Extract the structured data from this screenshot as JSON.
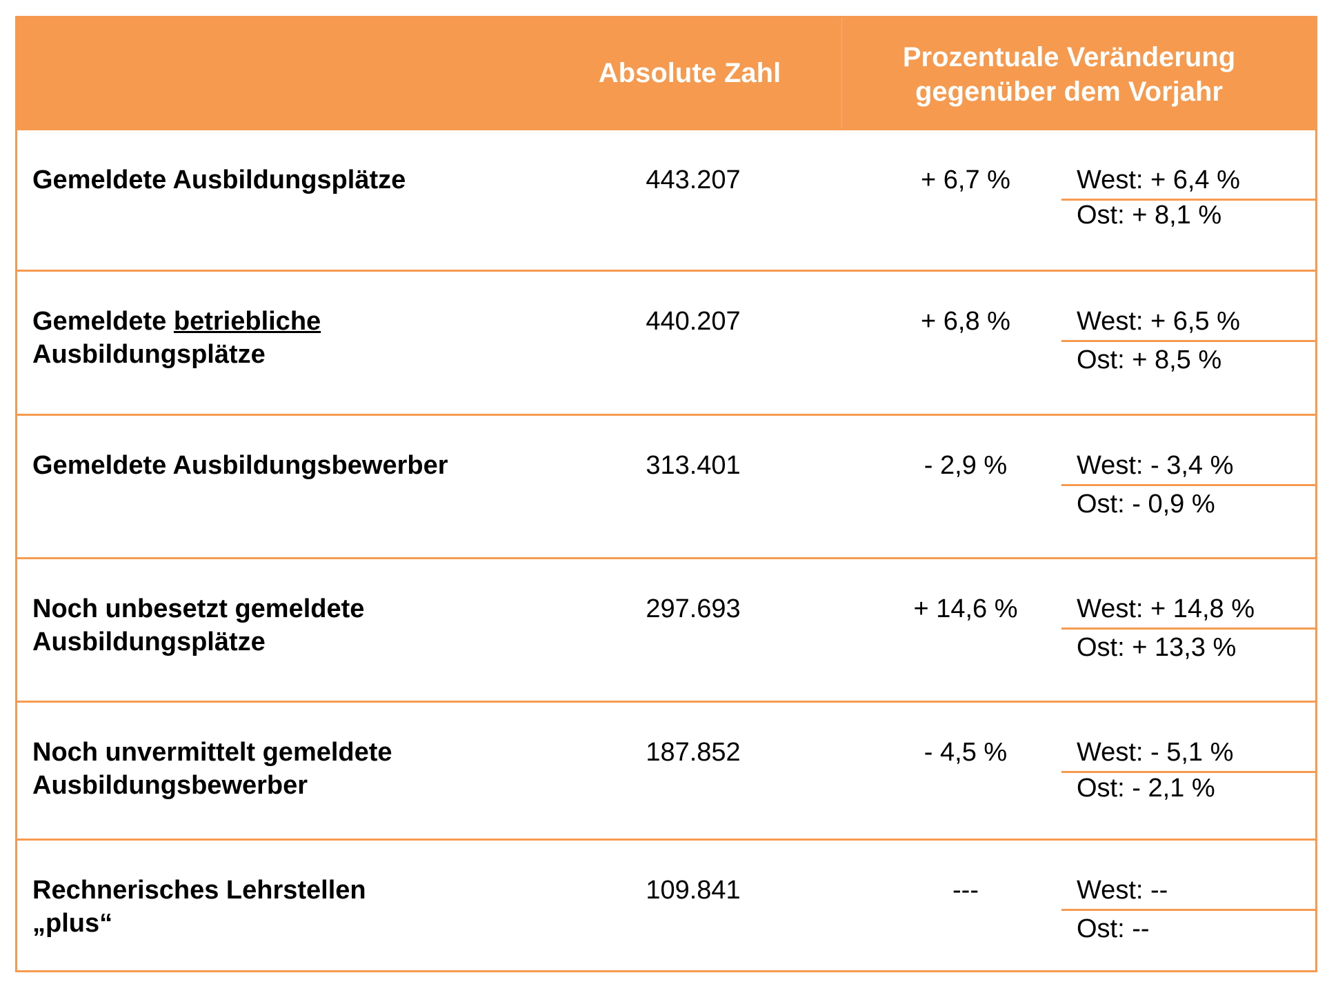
{
  "header": {
    "col_absolute": "Absolute Zahl",
    "col_percent_line1": "Prozentuale Veränderung",
    "col_percent_line2": "gegenüber dem Vorjahr"
  },
  "rows": [
    {
      "label_a": "Gemeldete Ausbildungsplätze",
      "label_u": "",
      "label_b": "",
      "absolute": "443.207",
      "change": "+ 6,7 %",
      "west": "West: + 6,4 %",
      "ost": "Ost: + 8,1 %"
    },
    {
      "label_a": "Gemeldete ",
      "label_u": "betriebliche",
      "label_b": "Ausbildungsplätze",
      "absolute": "440.207",
      "change": "+ 6,8 %",
      "west": "West: + 6,5 %",
      "ost": "Ost: + 8,5 %"
    },
    {
      "label_a": "Gemeldete Ausbildungsbewerber",
      "label_u": "",
      "label_b": "",
      "absolute": "313.401",
      "change": "- 2,9 %",
      "west": "West: - 3,4 %",
      "ost": "Ost: - 0,9 %"
    },
    {
      "label_a": "Noch unbesetzt gemeldete",
      "label_u": "",
      "label_b": "Ausbildungsplätze",
      "absolute": "297.693",
      "change": "+ 14,6 %",
      "west": "West: + 14,8 %",
      "ost": "Ost: + 13,3 %"
    },
    {
      "label_a": "Noch unvermittelt gemeldete",
      "label_u": "",
      "label_b": "Ausbildungsbewerber",
      "absolute": "187.852",
      "change": "- 4,5 %",
      "west": "West: - 5,1 %",
      "ost": "Ost: - 2,1 %"
    },
    {
      "label_a": "Rechnerisches Lehrstellen",
      "label_u": "",
      "label_b": "„plus“",
      "absolute": "109.841",
      "change": "---",
      "west": "West: --",
      "ost": "Ost: --"
    }
  ]
}
